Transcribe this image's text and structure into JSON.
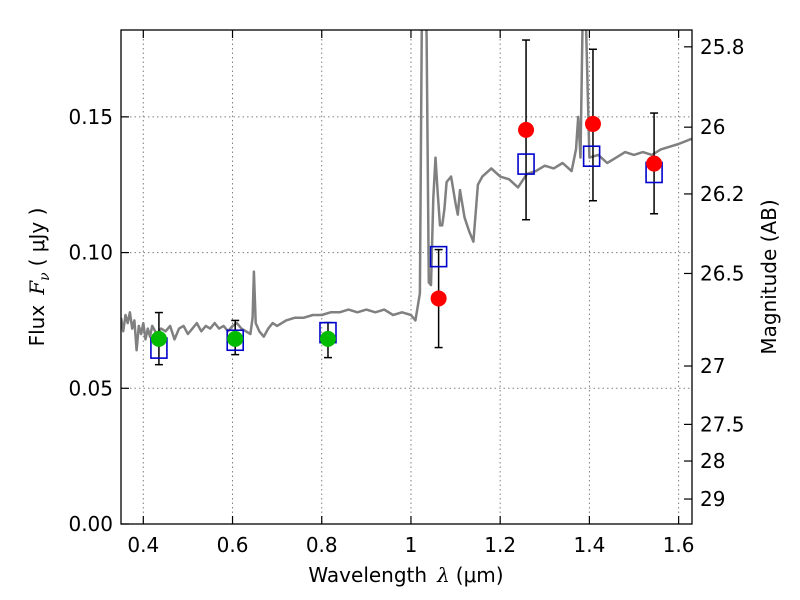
{
  "chart_data": {
    "type": "scatter",
    "xlabel_text": "Wavelength",
    "xlabel_symbol": "λ",
    "xlabel_unit": "(μm)",
    "ylabel_text": "Flux",
    "ylabel_symbol": "F",
    "ylabel_sub": "ν",
    "ylabel_unit": "( μJy )",
    "y2label": "Magnitude (AB)",
    "xlim": [
      0.35,
      1.63
    ],
    "ylim": [
      0.0,
      0.182
    ],
    "grid": true,
    "x_ticks": [
      0.4,
      0.6,
      0.8,
      1.0,
      1.2,
      1.4,
      1.6
    ],
    "x_tick_labels": [
      "0.4",
      "0.6",
      "0.8",
      "1",
      "1.2",
      "1.4",
      "1.6"
    ],
    "y_ticks": [
      0.0,
      0.05,
      0.1,
      0.15
    ],
    "y_tick_labels": [
      "0.00",
      "0.05",
      "0.10",
      "0.15"
    ],
    "y2_ticks": [
      {
        "label": "25.8",
        "flux": 0.1758
      },
      {
        "label": "26",
        "flux": 0.1462
      },
      {
        "label": "26.2",
        "flux": 0.1216
      },
      {
        "label": "26.5",
        "flux": 0.0923
      },
      {
        "label": "27",
        "flux": 0.0582
      },
      {
        "label": "27.5",
        "flux": 0.0367
      },
      {
        "label": "28",
        "flux": 0.0232
      },
      {
        "label": "29",
        "flux": 0.0092
      }
    ],
    "colors": {
      "model": "#808080",
      "green_points": "#00bb00",
      "red_points": "#ff0000",
      "squares": "#0000cc",
      "errorbars": "#000000",
      "grid": "#808080"
    },
    "model_spectrum": {
      "x": [
        0.35,
        0.355,
        0.36,
        0.365,
        0.37,
        0.375,
        0.38,
        0.385,
        0.39,
        0.395,
        0.4,
        0.405,
        0.41,
        0.415,
        0.42,
        0.43,
        0.44,
        0.45,
        0.46,
        0.47,
        0.48,
        0.49,
        0.5,
        0.51,
        0.52,
        0.53,
        0.54,
        0.55,
        0.56,
        0.57,
        0.58,
        0.59,
        0.6,
        0.61,
        0.62,
        0.63,
        0.64,
        0.645,
        0.648,
        0.652,
        0.66,
        0.67,
        0.68,
        0.69,
        0.7,
        0.72,
        0.74,
        0.76,
        0.78,
        0.8,
        0.82,
        0.84,
        0.86,
        0.88,
        0.9,
        0.92,
        0.94,
        0.96,
        0.98,
        1.0,
        1.01,
        1.02,
        1.025,
        1.03,
        1.035,
        1.04,
        1.045,
        1.05,
        1.055,
        1.06,
        1.065,
        1.07,
        1.075,
        1.08,
        1.09,
        1.1,
        1.105,
        1.11,
        1.12,
        1.13,
        1.14,
        1.15,
        1.16,
        1.18,
        1.2,
        1.22,
        1.24,
        1.26,
        1.28,
        1.3,
        1.32,
        1.34,
        1.36,
        1.37,
        1.375,
        1.38,
        1.385,
        1.39,
        1.4,
        1.42,
        1.44,
        1.46,
        1.48,
        1.5,
        1.52,
        1.54,
        1.56,
        1.58,
        1.6,
        1.63
      ],
      "y": [
        0.076,
        0.071,
        0.077,
        0.074,
        0.078,
        0.072,
        0.075,
        0.064,
        0.073,
        0.07,
        0.074,
        0.068,
        0.072,
        0.069,
        0.073,
        0.07,
        0.072,
        0.071,
        0.073,
        0.068,
        0.072,
        0.073,
        0.07,
        0.072,
        0.074,
        0.071,
        0.073,
        0.072,
        0.074,
        0.072,
        0.073,
        0.071,
        0.073,
        0.074,
        0.072,
        0.071,
        0.07,
        0.076,
        0.093,
        0.074,
        0.071,
        0.069,
        0.072,
        0.074,
        0.073,
        0.075,
        0.076,
        0.076,
        0.077,
        0.077,
        0.078,
        0.078,
        0.079,
        0.078,
        0.079,
        0.078,
        0.079,
        0.077,
        0.078,
        0.077,
        0.075,
        0.085,
        0.2,
        0.21,
        0.18,
        0.089,
        0.088,
        0.12,
        0.135,
        0.122,
        0.11,
        0.11,
        0.116,
        0.126,
        0.128,
        0.118,
        0.114,
        0.123,
        0.113,
        0.108,
        0.104,
        0.125,
        0.128,
        0.131,
        0.128,
        0.127,
        0.124,
        0.129,
        0.13,
        0.132,
        0.131,
        0.133,
        0.13,
        0.138,
        0.15,
        0.135,
        0.188,
        0.2,
        0.135,
        0.136,
        0.133,
        0.135,
        0.137,
        0.136,
        0.137,
        0.136,
        0.138,
        0.139,
        0.14,
        0.142
      ]
    },
    "series": [
      {
        "marker": "circle",
        "color": "#00bb00",
        "points": [
          {
            "x": 0.435,
            "y": 0.0682
          },
          {
            "x": 0.606,
            "y": 0.0682
          },
          {
            "x": 0.814,
            "y": 0.0682
          }
        ]
      },
      {
        "marker": "circle",
        "color": "#ff0000",
        "points": [
          {
            "x": 1.062,
            "y": 0.0831
          },
          {
            "x": 1.258,
            "y": 0.1452
          },
          {
            "x": 1.408,
            "y": 0.1474
          },
          {
            "x": 1.545,
            "y": 0.1328
          }
        ]
      },
      {
        "marker": "square-open",
        "color": "#0000cc",
        "points": [
          {
            "x": 0.435,
            "y": 0.0648
          },
          {
            "x": 0.606,
            "y": 0.0677
          },
          {
            "x": 0.814,
            "y": 0.0705
          },
          {
            "x": 1.062,
            "y": 0.0985
          },
          {
            "x": 1.258,
            "y": 0.1326
          },
          {
            "x": 1.405,
            "y": 0.1355
          },
          {
            "x": 1.545,
            "y": 0.1295
          }
        ]
      }
    ],
    "errorbars": [
      {
        "x": 0.435,
        "low": 0.0587,
        "high": 0.0779
      },
      {
        "x": 0.606,
        "low": 0.0624,
        "high": 0.075
      },
      {
        "x": 0.814,
        "low": 0.0613,
        "high": 0.0742
      },
      {
        "x": 1.062,
        "low": 0.065,
        "high": 0.1011
      },
      {
        "x": 1.258,
        "low": 0.1121,
        "high": 0.1783
      },
      {
        "x": 1.408,
        "low": 0.1191,
        "high": 0.1749
      },
      {
        "x": 1.545,
        "low": 0.1143,
        "high": 0.1514
      }
    ]
  }
}
